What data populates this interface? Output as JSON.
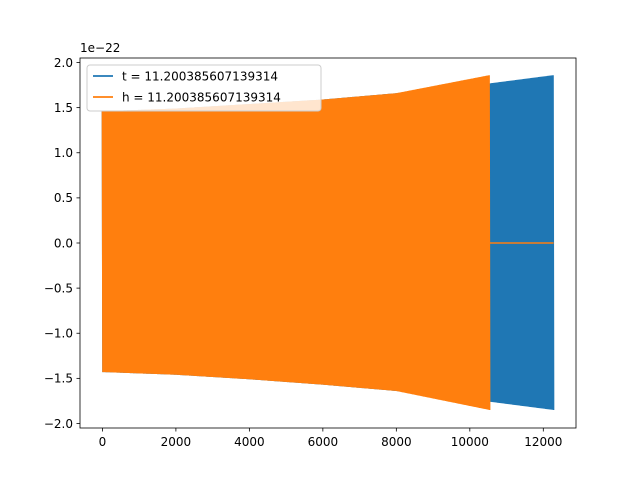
{
  "chart_data": {
    "type": "line",
    "title": "",
    "xlabel": "",
    "ylabel": "",
    "y_offset_label": "1e−22",
    "xlim": [
      -610,
      12890
    ],
    "ylim": [
      -2.05,
      2.05
    ],
    "x_ticks": [
      0,
      2000,
      4000,
      6000,
      8000,
      10000,
      12000
    ],
    "x_tick_labels": [
      "0",
      "2000",
      "4000",
      "6000",
      "8000",
      "10000",
      "12000"
    ],
    "y_ticks": [
      -2.0,
      -1.5,
      -1.0,
      -0.5,
      0.0,
      0.5,
      1.0,
      1.5,
      2.0
    ],
    "y_tick_labels": [
      "−2.0",
      "−1.5",
      "−1.0",
      "−0.5",
      "0.0",
      "0.5",
      "1.0",
      "1.5",
      "2.0"
    ],
    "grid": false,
    "legend_position": "upper-left",
    "series": [
      {
        "name": "t = 11.200385607139314",
        "color": "#1f77b4",
        "x_range": [
          0,
          12280
        ],
        "upper_envelope": [
          [
            0,
            1.46
          ],
          [
            2000,
            1.49
          ],
          [
            4000,
            1.54
          ],
          [
            6000,
            1.59
          ],
          [
            8000,
            1.66
          ],
          [
            10000,
            1.74
          ],
          [
            12280,
            1.86
          ]
        ],
        "lower_envelope": [
          [
            0,
            -1.43
          ],
          [
            2000,
            -1.46
          ],
          [
            4000,
            -1.51
          ],
          [
            6000,
            -1.57
          ],
          [
            8000,
            -1.64
          ],
          [
            10000,
            -1.73
          ],
          [
            12280,
            -1.85
          ]
        ]
      },
      {
        "name": "h = 11.200385607139314",
        "color": "#ff7f0e",
        "x_range": [
          0,
          10540
        ],
        "upper_envelope": [
          [
            0,
            1.46
          ],
          [
            2000,
            1.49
          ],
          [
            4000,
            1.54
          ],
          [
            6000,
            1.59
          ],
          [
            8000,
            1.66
          ],
          [
            10540,
            1.86
          ]
        ],
        "lower_envelope": [
          [
            0,
            -1.43
          ],
          [
            2000,
            -1.46
          ],
          [
            4000,
            -1.51
          ],
          [
            6000,
            -1.57
          ],
          [
            8000,
            -1.64
          ],
          [
            10540,
            -1.85
          ]
        ],
        "after_end_value": 0.0,
        "after_end_x_range": [
          10540,
          12280
        ]
      }
    ]
  }
}
